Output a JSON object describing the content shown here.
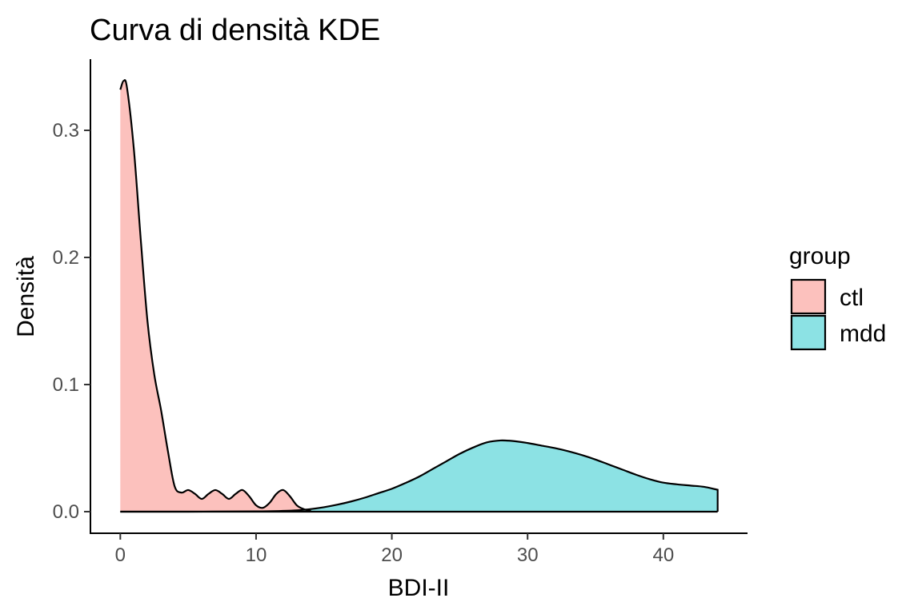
{
  "chart_data": {
    "type": "area",
    "title": "Curva di densità KDE",
    "xlabel": "BDI-II",
    "ylabel": "Densità",
    "xlim": [
      -2.2,
      46.2
    ],
    "ylim": [
      -0.017,
      0.356
    ],
    "x_ticks": [
      0,
      10,
      20,
      30,
      40
    ],
    "y_ticks": [
      0.0,
      0.1,
      0.2,
      0.3
    ],
    "x_tick_labels": [
      "0",
      "10",
      "20",
      "30",
      "40"
    ],
    "y_tick_labels": [
      "0.0",
      "0.1",
      "0.2",
      "0.3"
    ],
    "grid": false,
    "legend": {
      "title": "group",
      "position": "right"
    },
    "series": [
      {
        "name": "ctl",
        "color": "#F8766D",
        "x": [
          0,
          0.25,
          0.5,
          1,
          1.5,
          2,
          2.5,
          3,
          3.5,
          4,
          4.5,
          5,
          5.5,
          6,
          6.5,
          7,
          7.5,
          8,
          8.5,
          9,
          9.5,
          10,
          10.5,
          11,
          11.5,
          12,
          12.5,
          13,
          13.5,
          14
        ],
        "y": [
          0.332,
          0.339,
          0.333,
          0.285,
          0.215,
          0.15,
          0.108,
          0.08,
          0.048,
          0.02,
          0.015,
          0.017,
          0.014,
          0.01,
          0.014,
          0.017,
          0.014,
          0.01,
          0.014,
          0.017,
          0.012,
          0.005,
          0.003,
          0.007,
          0.014,
          0.017,
          0.012,
          0.005,
          0.002,
          0.0005
        ]
      },
      {
        "name": "mdd",
        "color": "#00BFC4",
        "x": [
          0,
          5,
          10,
          12,
          13,
          14,
          15,
          16,
          17,
          18,
          19,
          20,
          21,
          22,
          23,
          24,
          25,
          26,
          27,
          28,
          29,
          30,
          31,
          32,
          33,
          34,
          35,
          36,
          37,
          38,
          39,
          40,
          41,
          42,
          43,
          44
        ],
        "y": [
          0.0,
          0.0,
          0.0002,
          0.0006,
          0.001,
          0.002,
          0.0035,
          0.0055,
          0.008,
          0.011,
          0.0145,
          0.018,
          0.0225,
          0.0275,
          0.0335,
          0.0395,
          0.0455,
          0.0505,
          0.0545,
          0.056,
          0.0555,
          0.054,
          0.052,
          0.05,
          0.0475,
          0.0445,
          0.041,
          0.037,
          0.033,
          0.029,
          0.0255,
          0.0228,
          0.0215,
          0.0205,
          0.0195,
          0.0172
        ]
      }
    ]
  }
}
